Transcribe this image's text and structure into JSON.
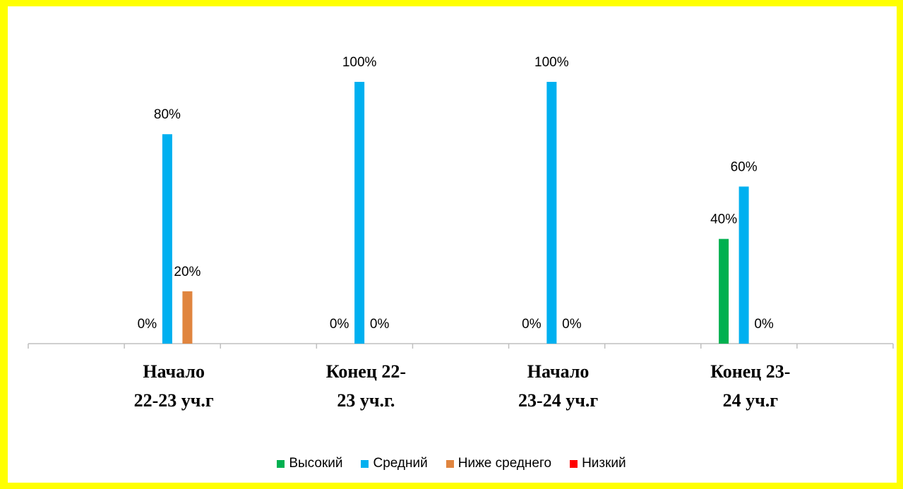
{
  "chart_data": {
    "type": "bar",
    "categories": [
      null,
      "Начало 22-23 уч.г",
      null,
      "Конец 22-23 уч.г.",
      null,
      "Начало 23-24 уч.г",
      null,
      "Конец 23-24 уч.г",
      null
    ],
    "series": [
      {
        "name": "Высокий",
        "color": "#00b050",
        "values": [
          null,
          0,
          null,
          0,
          null,
          0,
          null,
          40,
          null
        ],
        "value_labels": [
          null,
          "0%",
          null,
          "0%",
          null,
          "0%",
          null,
          "40%",
          null
        ]
      },
      {
        "name": "Средний",
        "color": "#00b0f0",
        "values": [
          null,
          80,
          null,
          100,
          null,
          100,
          null,
          60,
          null
        ],
        "value_labels": [
          null,
          "80%",
          null,
          "100%",
          null,
          "100%",
          null,
          "60%",
          null
        ]
      },
      {
        "name": "Ниже среднего",
        "color": "#e0853f",
        "values": [
          null,
          20,
          null,
          0,
          null,
          0,
          null,
          0,
          null
        ],
        "value_labels": [
          null,
          "20%",
          null,
          "0%",
          null,
          "0%",
          null,
          "0%",
          null
        ]
      },
      {
        "name": "Низкий",
        "color": "#ff0000",
        "values": [
          null,
          null,
          null,
          null,
          null,
          null,
          null,
          null,
          null
        ],
        "value_labels": [
          null,
          null,
          null,
          null,
          null,
          null,
          null,
          null,
          null
        ]
      }
    ],
    "legend": "bottom"
  }
}
